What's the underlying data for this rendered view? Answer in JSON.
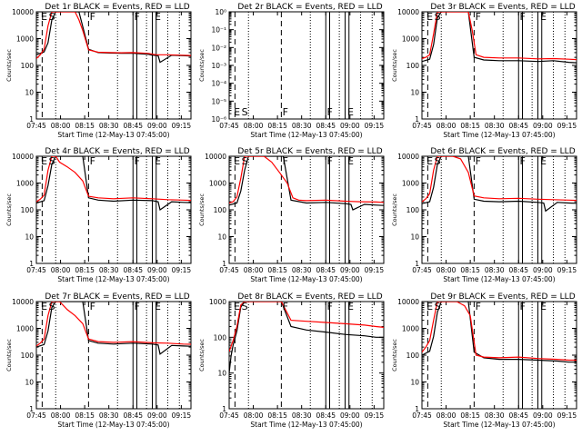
{
  "colors": {
    "events": "#000000",
    "lld": "#ff0000",
    "axis": "#000000"
  },
  "chart_data": [
    {
      "type": "line",
      "title": "Det 1r BLACK = Events, RED = LLD",
      "xlabel": "Start Time (12-May-13 07:45:00)",
      "ylabel": "Counts/sec",
      "xlim": [
        0,
        40
      ],
      "ylim": [
        1,
        10000
      ],
      "yscale": "log",
      "x_ticks": [
        "07:45",
        "08:00",
        "08:15",
        "08:30",
        "08:45",
        "09:00",
        "09:15"
      ],
      "y_ticks": [
        "1",
        "10",
        "100",
        "1000",
        "10000"
      ],
      "markers": [
        "E",
        "S",
        "F",
        "F",
        "E"
      ],
      "series": [
        {
          "color": "#000000",
          "x": [
            0,
            2,
            3,
            4,
            5,
            7,
            9,
            10,
            11,
            13.5,
            16,
            19,
            22,
            25,
            29,
            30,
            31.5,
            32,
            35,
            38,
            40
          ],
          "y": [
            250,
            320,
            700,
            5000,
            10000,
            10000,
            10000,
            10000,
            10000,
            400,
            300,
            290,
            285,
            285,
            260,
            240,
            230,
            130,
            240,
            230,
            225
          ]
        },
        {
          "color": "#ff0000",
          "x": [
            0,
            1,
            2,
            3,
            4,
            6,
            8,
            10,
            11,
            12,
            13.5,
            16,
            19,
            22,
            25,
            29,
            31,
            34,
            38,
            40
          ],
          "y": [
            180,
            250,
            400,
            3000,
            10000,
            10000,
            10000,
            10000,
            5000,
            2000,
            380,
            310,
            300,
            295,
            300,
            280,
            250,
            250,
            240,
            235
          ]
        }
      ]
    },
    {
      "type": "line",
      "title": "Det 2r BLACK = Events, RED = LLD",
      "xlabel": "Start Time (12-May-13 07:45:00)",
      "ylabel": "Counts/sec",
      "xlim": [
        0,
        40
      ],
      "ylim": [
        1e-06,
        1
      ],
      "yscale": "log",
      "x_ticks": [
        "07:45",
        "08:00",
        "08:15",
        "08:30",
        "08:45",
        "09:00",
        "09:15"
      ],
      "y_ticks": [
        "10⁻⁶",
        "10⁻⁵",
        "10⁻⁴",
        "10⁻³",
        "10⁻²",
        "10⁻¹",
        "10⁰"
      ],
      "markers": [
        "E",
        "S",
        "F",
        "F",
        "E"
      ],
      "series": []
    },
    {
      "type": "line",
      "title": "Det 3r BLACK = Events, RED = LLD",
      "xlabel": "Start Time (12-May-13 07:45:00)",
      "ylabel": "Counts/sec",
      "xlim": [
        0,
        40
      ],
      "ylim": [
        1,
        10000
      ],
      "yscale": "log",
      "x_ticks": [
        "07:45",
        "08:00",
        "08:15",
        "08:30",
        "08:45",
        "09:00",
        "09:15"
      ],
      "y_ticks": [
        "1",
        "10",
        "100",
        "1000",
        "10000"
      ],
      "markers": [
        "E",
        "S",
        "F",
        "F",
        "E"
      ],
      "series": [
        {
          "color": "#000000",
          "x": [
            0,
            2,
            3,
            4,
            5,
            7,
            9,
            11,
            12,
            13.5,
            16,
            20,
            25,
            30,
            34,
            38,
            40
          ],
          "y": [
            140,
            170,
            600,
            6000,
            10000,
            10000,
            10000,
            10000,
            10000,
            200,
            160,
            150,
            150,
            140,
            150,
            130,
            125
          ]
        },
        {
          "color": "#ff0000",
          "x": [
            0,
            1,
            2,
            3,
            4,
            6,
            8,
            10,
            12,
            13,
            14,
            16,
            20,
            25,
            30,
            34,
            38,
            40
          ],
          "y": [
            180,
            200,
            250,
            1500,
            10000,
            10000,
            10000,
            10000,
            10000,
            2000,
            250,
            200,
            190,
            190,
            175,
            180,
            170,
            165
          ]
        }
      ]
    },
    {
      "type": "line",
      "title": "Det 4r BLACK = Events, RED = LLD",
      "xlabel": "Start Time (12-May-13 07:45:00)",
      "ylabel": "Counts/sec",
      "xlim": [
        0,
        40
      ],
      "ylim": [
        1,
        10000
      ],
      "yscale": "log",
      "x_ticks": [
        "07:45",
        "08:00",
        "08:15",
        "08:30",
        "08:45",
        "09:00",
        "09:15"
      ],
      "y_ticks": [
        "1",
        "10",
        "100",
        "1000",
        "10000"
      ],
      "markers": [
        "E",
        "S",
        "F",
        "F",
        "E"
      ],
      "series": [
        {
          "color": "#000000",
          "x": [
            0,
            2,
            3,
            4,
            5,
            7,
            10,
            11,
            12,
            13.5,
            16,
            20,
            25,
            30,
            31.5,
            32,
            35,
            38,
            40
          ],
          "y": [
            180,
            220,
            800,
            5000,
            10000,
            10000,
            10000,
            10000,
            10000,
            280,
            230,
            210,
            230,
            220,
            200,
            100,
            200,
            190,
            185
          ]
        },
        {
          "color": "#ff0000",
          "x": [
            0,
            1,
            2,
            3,
            4,
            5,
            6,
            8,
            10,
            12,
            13.5,
            16,
            20,
            25,
            30,
            34,
            38,
            40
          ],
          "y": [
            200,
            250,
            350,
            3000,
            10000,
            10000,
            6000,
            4000,
            2500,
            1200,
            320,
            280,
            260,
            280,
            260,
            240,
            230,
            225
          ]
        }
      ]
    },
    {
      "type": "line",
      "title": "Det 5r BLACK = Events, RED = LLD",
      "xlabel": "Start Time (12-May-13 07:45:00)",
      "ylabel": "Counts/sec",
      "xlim": [
        0,
        40
      ],
      "ylim": [
        1,
        10000
      ],
      "yscale": "log",
      "x_ticks": [
        "07:45",
        "08:00",
        "08:15",
        "08:30",
        "08:45",
        "09:00",
        "09:15"
      ],
      "y_ticks": [
        "1",
        "10",
        "100",
        "1000",
        "10000"
      ],
      "markers": [
        "E",
        "S",
        "F",
        "F",
        "E"
      ],
      "series": [
        {
          "color": "#000000",
          "x": [
            0,
            2,
            3,
            4,
            5,
            7,
            10,
            12,
            14,
            16,
            20,
            25,
            30,
            31.5,
            32,
            35,
            38,
            40
          ],
          "y": [
            150,
            180,
            500,
            3000,
            10000,
            10000,
            10000,
            10000,
            10000,
            230,
            180,
            190,
            170,
            160,
            100,
            160,
            150,
            145
          ]
        },
        {
          "color": "#ff0000",
          "x": [
            0,
            1,
            2,
            3,
            4,
            5,
            7,
            9,
            11,
            13,
            15,
            16.5,
            18,
            20,
            25,
            30,
            34,
            38,
            40
          ],
          "y": [
            180,
            200,
            300,
            1500,
            10000,
            10000,
            10000,
            10000,
            6000,
            2500,
            1000,
            280,
            230,
            220,
            230,
            210,
            200,
            195,
            190
          ]
        }
      ]
    },
    {
      "type": "line",
      "title": "Det 6r BLACK = Events, RED = LLD",
      "xlabel": "Start Time (12-May-13 07:45:00)",
      "ylabel": "Counts/sec",
      "xlim": [
        0,
        40
      ],
      "ylim": [
        1,
        10000
      ],
      "yscale": "log",
      "x_ticks": [
        "07:45",
        "08:00",
        "08:15",
        "08:30",
        "08:45",
        "09:00",
        "09:15"
      ],
      "y_ticks": [
        "1",
        "10",
        "100",
        "1000",
        "10000"
      ],
      "markers": [
        "E",
        "S",
        "F",
        "F",
        "E"
      ],
      "series": [
        {
          "color": "#000000",
          "x": [
            0,
            2,
            3,
            4,
            5,
            7,
            10,
            12,
            13.5,
            16,
            20,
            25,
            30,
            31.5,
            32,
            35,
            38,
            40
          ],
          "y": [
            170,
            200,
            700,
            5000,
            10000,
            10000,
            10000,
            10000,
            250,
            210,
            200,
            210,
            190,
            180,
            90,
            190,
            180,
            175
          ]
        },
        {
          "color": "#ff0000",
          "x": [
            0,
            1,
            2,
            3,
            4,
            6,
            8,
            10,
            12,
            13.5,
            16,
            20,
            25,
            30,
            34,
            38,
            40
          ],
          "y": [
            200,
            260,
            400,
            3000,
            10000,
            10000,
            10000,
            8000,
            2500,
            330,
            280,
            260,
            270,
            250,
            240,
            230,
            225
          ]
        }
      ]
    },
    {
      "type": "line",
      "title": "Det 7r BLACK = Events, RED = LLD",
      "xlabel": "Start Time (12-May-13 07:45:00)",
      "ylabel": "Counts/sec",
      "xlim": [
        0,
        40
      ],
      "ylim": [
        1,
        10000
      ],
      "yscale": "log",
      "x_ticks": [
        "07:45",
        "08:00",
        "08:15",
        "08:30",
        "08:45",
        "09:00",
        "09:15"
      ],
      "y_ticks": [
        "1",
        "10",
        "100",
        "1000",
        "10000"
      ],
      "markers": [
        "E",
        "S",
        "F",
        "F",
        "E"
      ],
      "series": [
        {
          "color": "#000000",
          "x": [
            0,
            2,
            3,
            4,
            5,
            7,
            10,
            12,
            13.5,
            16,
            20,
            25,
            30,
            31.5,
            32,
            35,
            38,
            40
          ],
          "y": [
            200,
            250,
            800,
            6000,
            10000,
            10000,
            10000,
            10000,
            350,
            280,
            260,
            280,
            260,
            240,
            110,
            230,
            220,
            215
          ]
        },
        {
          "color": "#ff0000",
          "x": [
            0,
            1,
            2,
            3,
            4,
            6,
            8,
            10,
            12,
            13.5,
            16,
            20,
            25,
            30,
            34,
            38,
            40
          ],
          "y": [
            220,
            280,
            400,
            3000,
            10000,
            10000,
            5000,
            3000,
            1500,
            400,
            320,
            300,
            320,
            290,
            280,
            260,
            255
          ]
        }
      ]
    },
    {
      "type": "line",
      "title": "Det 8r BLACK = Events, RED = LLD",
      "xlabel": "Start Time (12-May-13 07:45:00)",
      "ylabel": "Counts/sec",
      "xlim": [
        0,
        40
      ],
      "ylim": [
        1,
        1000
      ],
      "yscale": "log",
      "x_ticks": [
        "07:45",
        "08:00",
        "08:15",
        "08:30",
        "08:45",
        "09:00",
        "09:15"
      ],
      "y_ticks": [
        "1",
        "10",
        "100",
        "1000"
      ],
      "markers": [
        "E",
        "S",
        "F",
        "F",
        "E"
      ],
      "series": [
        {
          "color": "#000000",
          "x": [
            0,
            0.5,
            1,
            2,
            3,
            4,
            6,
            10,
            13.5,
            16,
            20,
            25,
            30,
            35,
            38,
            40
          ],
          "y": [
            10,
            30,
            60,
            150,
            700,
            1000,
            1000,
            1000,
            1000,
            200,
            160,
            140,
            120,
            110,
            100,
            100
          ]
        },
        {
          "color": "#ff0000",
          "x": [
            0,
            1,
            2,
            3,
            4,
            6,
            10,
            13.5,
            16,
            20,
            25,
            30,
            35,
            38,
            40
          ],
          "y": [
            40,
            80,
            200,
            800,
            1000,
            1000,
            1000,
            1000,
            300,
            280,
            260,
            240,
            220,
            200,
            190
          ]
        }
      ]
    },
    {
      "type": "line",
      "title": "Det 9r BLACK = Events, RED = LLD",
      "xlabel": "Start Time (12-May-13 07:45:00)",
      "ylabel": "Counts/sec",
      "xlim": [
        0,
        40
      ],
      "ylim": [
        1,
        10000
      ],
      "yscale": "log",
      "x_ticks": [
        "07:45",
        "08:00",
        "08:15",
        "08:30",
        "08:45",
        "09:00",
        "09:15"
      ],
      "y_ticks": [
        "1",
        "10",
        "100",
        "1000",
        "10000"
      ],
      "markers": [
        "E",
        "S",
        "F",
        "F",
        "E"
      ],
      "series": [
        {
          "color": "#000000",
          "x": [
            0,
            2,
            3,
            4,
            5,
            7,
            10,
            12,
            13.5,
            16,
            20,
            25,
            30,
            35,
            38,
            40
          ],
          "y": [
            100,
            140,
            500,
            4000,
            10000,
            10000,
            10000,
            10000,
            130,
            80,
            70,
            70,
            65,
            60,
            55,
            55
          ]
        },
        {
          "color": "#ff0000",
          "x": [
            0,
            1,
            2,
            3,
            4,
            5,
            7,
            9,
            11,
            12.5,
            14,
            16,
            20,
            25,
            30,
            35,
            38,
            40
          ],
          "y": [
            130,
            200,
            350,
            2000,
            10000,
            10000,
            10000,
            10000,
            7000,
            3000,
            100,
            85,
            80,
            85,
            75,
            70,
            65,
            65
          ]
        }
      ]
    }
  ]
}
